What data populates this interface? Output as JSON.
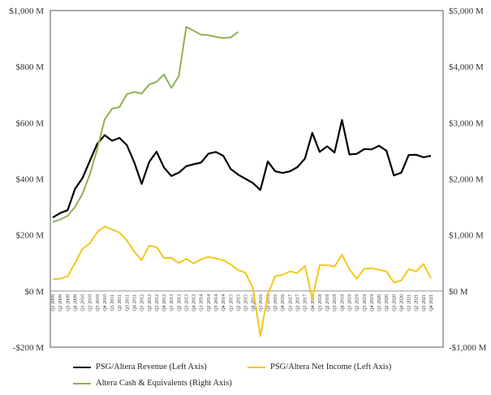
{
  "chart_data": {
    "type": "line",
    "categories": [
      "Q1 2009",
      "Q2 2009",
      "Q3 2009",
      "Q4 2009",
      "Q1 2010",
      "Q2 2010",
      "Q3 2010",
      "Q4 2010",
      "Q1 2011",
      "Q2 2011",
      "Q3 2011",
      "Q4 2011",
      "Q1 2012",
      "Q2 2012",
      "Q3 2012",
      "Q4 2012",
      "Q1 2013",
      "Q2 2013",
      "Q3 2013",
      "Q4 2013",
      "Q1 2014",
      "Q2 2014",
      "Q3 2014",
      "Q4 2014",
      "Q1 2015",
      "Q2 2015",
      "Q3 2015",
      "Q4 2015",
      "Q1 2016",
      "Q2 2016",
      "Q3 2016",
      "Q4 2016",
      "Q1 2017",
      "Q2 2017",
      "Q3 2017",
      "Q4 2017",
      "Q1 2018",
      "Q2 2018",
      "Q3 2018",
      "Q4 2018",
      "Q1 2019",
      "Q2 2019",
      "Q3 2019",
      "Q4 2019",
      "Q1 2020",
      "Q2 2020",
      "Q3 2020",
      "Q4 2020",
      "Q1 2021",
      "Q2 2021",
      "Q3 2021",
      "Q4 2021"
    ],
    "y_left": {
      "range": [
        -200,
        1000
      ],
      "ticks": [
        "$1,000 M",
        "$800 M",
        "$600 M",
        "$400 M",
        "$200 M",
        "$0 M",
        "-$200 M"
      ],
      "tick_values": [
        1000,
        800,
        600,
        400,
        200,
        0,
        -200
      ]
    },
    "y_right": {
      "range": [
        -1000,
        5000
      ],
      "ticks": [
        "$5,000 M",
        "$4,000 M",
        "$3,000 M",
        "$2,000 M",
        "$1,000 M",
        "$0 M",
        "-$1,000 M"
      ],
      "tick_values": [
        5000,
        4000,
        3000,
        2000,
        1000,
        0,
        -1000
      ]
    },
    "series": [
      {
        "name": "PSG/Altera Revenue (Left Axis)",
        "axis": "left",
        "color": "#000000",
        "values": [
          262,
          278,
          288,
          364,
          402,
          464,
          525,
          556,
          536,
          546,
          520,
          458,
          382,
          460,
          497,
          440,
          410,
          422,
          445,
          452,
          458,
          490,
          496,
          482,
          435,
          415,
          400,
          385,
          360,
          462,
          427,
          421,
          427,
          442,
          472,
          564,
          496,
          516,
          494,
          610,
          487,
          489,
          506,
          505,
          518,
          500,
          412,
          422,
          485,
          486,
          477,
          482
        ]
      },
      {
        "name": "PSG/Altera Net Income (Left Axis)",
        "axis": "left",
        "color": "#f2c81a",
        "values": [
          42,
          44,
          52,
          100,
          150,
          170,
          210,
          230,
          220,
          208,
          180,
          140,
          110,
          162,
          156,
          118,
          118,
          100,
          115,
          98,
          113,
          122,
          116,
          110,
          95,
          75,
          65,
          10,
          -160,
          -12,
          53,
          58,
          70,
          64,
          90,
          -28,
          92,
          93,
          87,
          130,
          78,
          44,
          80,
          82,
          76,
          70,
          30,
          38,
          78,
          70,
          96,
          45
        ]
      },
      {
        "name": "Altera Cash & Equivalents (Right Axis)",
        "axis": "right",
        "color": "#8fb053",
        "values": [
          1230,
          1275,
          1340,
          1500,
          1730,
          2080,
          2530,
          3060,
          3250,
          3280,
          3510,
          3550,
          3520,
          3680,
          3730,
          3860,
          3620,
          3830,
          4710,
          4640,
          4570,
          4560,
          4530,
          4510,
          4520,
          4620,
          null,
          null,
          null,
          null,
          null,
          null,
          null,
          null,
          null,
          null,
          null,
          null,
          null,
          null,
          null,
          null,
          null,
          null,
          null,
          null,
          null,
          null,
          null,
          null,
          null,
          null
        ]
      }
    ],
    "legend_position": "bottom",
    "grid": false
  }
}
